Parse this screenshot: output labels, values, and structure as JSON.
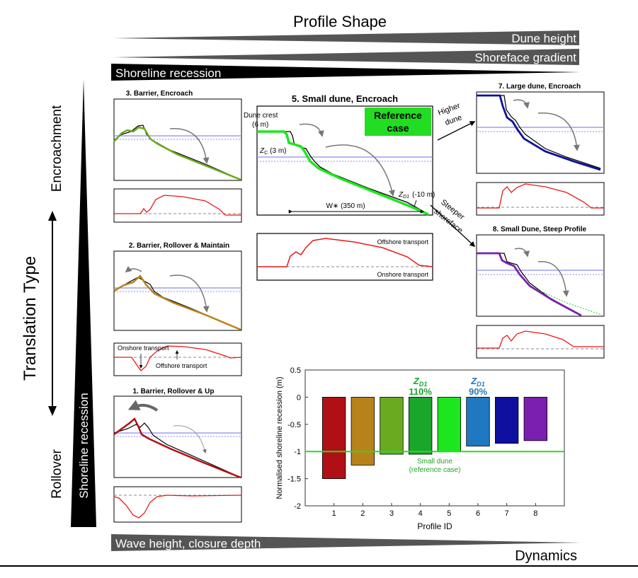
{
  "header": {
    "profile_shape": "Profile Shape",
    "dune_height": "Dune height",
    "shoreface_gradient": "Shoreface gradient",
    "shoreline_recession": "Shoreline recession"
  },
  "left_axis": {
    "translation_type": "Translation Type",
    "encroachment": "Encroachment",
    "rollover": "Rollover",
    "shoreline_recession": "Shoreline recession"
  },
  "footer": {
    "wave_height": "Wave height, closure depth",
    "dynamics": "Dynamics"
  },
  "panels": {
    "p3": {
      "title": "3. Barrier, Encroach"
    },
    "p2": {
      "title": "2. Barrier, Rollover & Maintain",
      "onshore_transport": "Onshore transport",
      "offshore_transport": "Offshore transport"
    },
    "p1": {
      "title": "1. Barrier, Rollover & Up"
    },
    "p5": {
      "title": "5. Small dune, Encroach",
      "dune_crest": "Dune crest",
      "dune_crest_value": "(6 m)",
      "zc": "Z",
      "zc_sub": "C",
      "zc_value": "(3 m)",
      "zd1": "Z",
      "zd1_sub": "D1",
      "zd1_value": "(-10 m)",
      "ws": "W∗ (350 m)",
      "reference_case_1": "Reference",
      "reference_case_2": "case",
      "offshore_transport": "Offshore transport",
      "onshore_transport": "Onshore transport"
    },
    "p7": {
      "title": "7. Large dune, Encroach"
    },
    "p8": {
      "title": "8. Small Dune, Steep Profile"
    }
  },
  "arrows": {
    "higher_dune_1": "Higher",
    "higher_dune_2": "dune",
    "steeper_1": "Steeper",
    "steeper_2": "shoreface"
  },
  "colors": {
    "p1": "#b01015",
    "p2": "#b8821a",
    "p3": "#6aaa1f",
    "p4": "#1aa52b",
    "p5": "#1ee61e",
    "p6": "#1f78c0",
    "p7": "#0f0fa0",
    "p8": "#7a1fb0",
    "water": "#8a8af0",
    "transport": "#e81818",
    "reference": "#22dd22"
  },
  "chart_data": {
    "type": "bar",
    "categories": [
      "1",
      "2",
      "3",
      "4",
      "5",
      "6",
      "7",
      "8"
    ],
    "values": [
      -1.5,
      -1.25,
      -1.05,
      -1.05,
      -1.0,
      -0.9,
      -0.85,
      -0.8
    ],
    "xlabel": "Profile ID",
    "ylabel": "Normalised shoreline recession (m)",
    "ylim": [
      -2,
      0.5
    ],
    "yticks": [
      0.5,
      0,
      -0.5,
      -1,
      -1.5,
      -2
    ],
    "ytick_labels": [
      "0.5",
      "0",
      "-0.5",
      "-1",
      "-1.5",
      "-2"
    ],
    "reference_line": -1,
    "reference_label_1": "Small dune",
    "reference_label_2": "(reference case)",
    "annotations": [
      {
        "bar": "4",
        "symbol": "Z",
        "sub": "D1",
        "value": "110%"
      },
      {
        "bar": "6",
        "symbol": "Z",
        "sub": "D1",
        "value": "90%"
      }
    ],
    "bar_colors": [
      "#b01015",
      "#b8821a",
      "#6aaa1f",
      "#1aa52b",
      "#1ee61e",
      "#1f78c0",
      "#0f0fa0",
      "#7a1fb0"
    ]
  }
}
